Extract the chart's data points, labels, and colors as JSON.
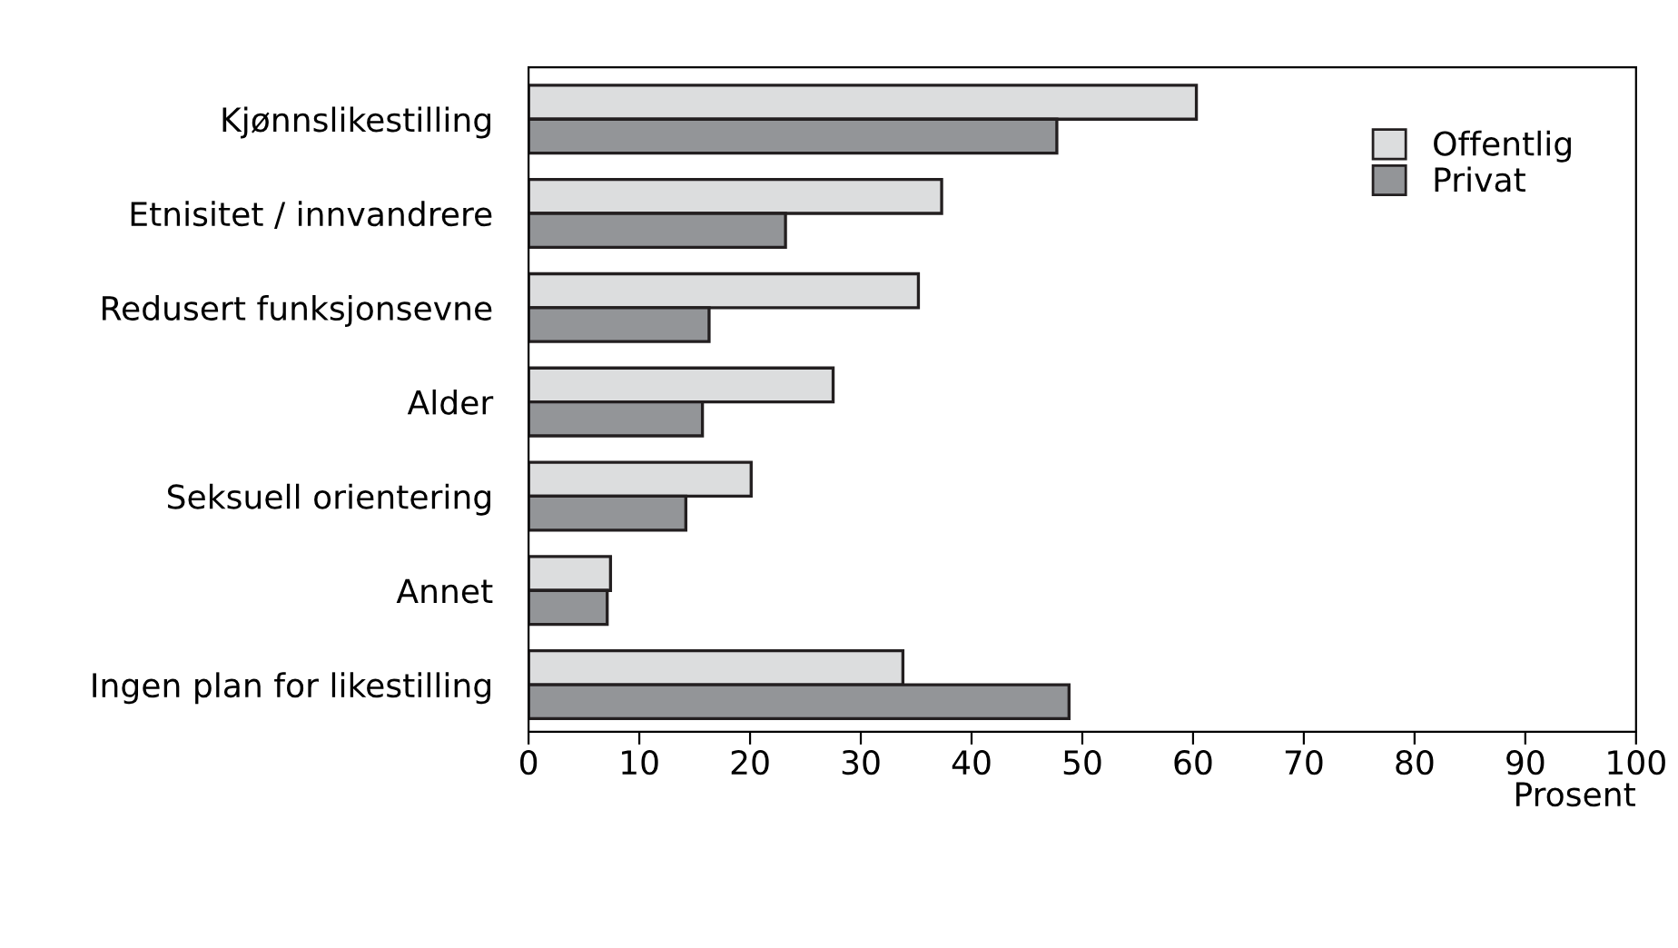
{
  "chart_data": {
    "type": "bar",
    "orientation": "horizontal",
    "xlabel": "Prosent",
    "categories": [
      "Kjønnslikestilling",
      "Etnisitet / innvandrere",
      "Redusert funksjonsevne",
      "Alder",
      "Seksuell orientering",
      "Annet",
      "Ingen plan for likestilling"
    ],
    "series": [
      {
        "name": "Offentlig",
        "color": "#dcddde",
        "values": [
          60.3,
          37.3,
          35.2,
          27.5,
          20.1,
          7.4,
          33.8
        ]
      },
      {
        "name": "Privat",
        "color": "#939598",
        "values": [
          47.7,
          23.2,
          16.3,
          15.7,
          14.2,
          7.1,
          48.8
        ]
      }
    ],
    "xlim": [
      0,
      100
    ],
    "xticks": [
      0,
      10,
      20,
      30,
      40,
      50,
      60,
      70,
      80,
      90,
      100
    ],
    "grid": false,
    "legend": "top right"
  }
}
